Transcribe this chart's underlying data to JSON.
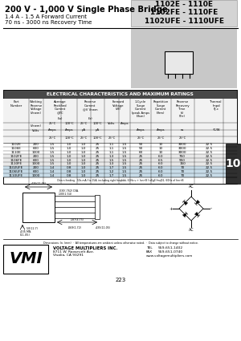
{
  "title_left1": "200 V - 1,000 V Single Phase Bridge",
  "title_left2": "1.4 A - 1.5 A Forward Current",
  "title_left3": "70 ns - 3000 ns Recovery Time",
  "title_right1": "1102E - 1110E",
  "title_right2": "1102FE - 1110FE",
  "title_right3": "1102UFE - 1110UFE",
  "table_title": "ELECTRICAL CHARACTERISTICS AND MAXIMUM RATINGS",
  "rows": [
    [
      "1102E",
      "200",
      "1.5",
      "1.0",
      "1.0",
      "25",
      "1.1",
      "1.5",
      "50",
      "10",
      "3000",
      "22.5"
    ],
    [
      "1106E",
      "600",
      "1.5",
      "1.0",
      "1.0",
      "25",
      "1.1",
      "1.5",
      "50",
      "10",
      "3000",
      "22.5"
    ],
    [
      "1110E",
      "1000",
      "1.5",
      "1.0",
      "1.0",
      "25",
      "1.1",
      "1.5",
      "60",
      "10",
      "3000",
      "22.5"
    ],
    [
      "1102FE",
      "200",
      "1.5",
      "1.0",
      "1.0",
      "25",
      "1.3",
      "1.5",
      "25",
      "6.0",
      "750",
      "22.5"
    ],
    [
      "1106FE",
      "600",
      "1.5",
      "1.0",
      "1.0",
      "25",
      "1.5",
      "1.5",
      "25",
      "6.5",
      "950",
      "22.5"
    ],
    [
      "1110FE",
      "1000",
      "1.5",
      "1.0",
      "1.0",
      "25",
      "1.3",
      "1.5",
      "25",
      "6.0",
      "150",
      "22.5"
    ],
    [
      "1102UFE",
      "200",
      "1.4",
      "0.8",
      "1.0",
      "25",
      "1.7",
      "1.5",
      "25",
      "6.0",
      "70",
      "22.5"
    ],
    [
      "1106UFE",
      "600",
      "1.4",
      "0.8",
      "1.0",
      "25",
      "1.2",
      "1.5",
      "25",
      "6.0",
      "70",
      "22.5"
    ],
    [
      "1110UFE",
      "1000",
      "1.4",
      "0.8",
      "1.0",
      "25",
      "1.7",
      "1.5",
      "25",
      "6.0",
      "70",
      "22.5"
    ]
  ],
  "row_group_colors": [
    "#ffffff",
    "#ffffff",
    "#ffffff",
    "#e8e8e8",
    "#e8e8e8",
    "#e8e8e8",
    "#c8dce8",
    "#c8dce8",
    "#c8dce8"
  ],
  "bg_color": "#ffffff",
  "company": "VOLTAGE MULTIPLIERS INC.",
  "address1": "8711 W. Roosevelt Ave.",
  "address2": "Visalia, CA 93291",
  "tel": "559-651-1402",
  "fax": "559-651-0740",
  "web": "www.voltagemultipliers.com",
  "page_num": "223",
  "section_num": "10",
  "footer_note": "Chin n feeding   50s mA f to 15A, including right freqbbb, 60Hz u + lnn+B f nEgll fmqB2, 60Hz of fnn+B"
}
